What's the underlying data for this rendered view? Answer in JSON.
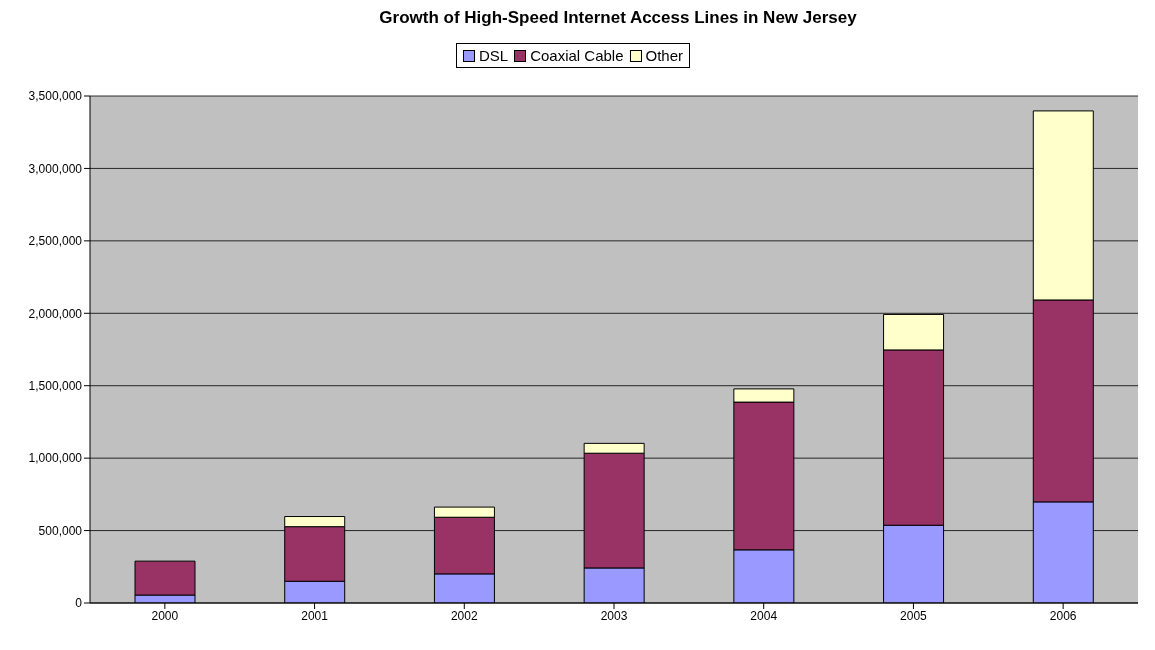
{
  "chart_data": {
    "type": "bar",
    "title": "Growth of High-Speed Internet Access Lines in New Jersey",
    "categories": [
      "2000",
      "2001",
      "2002",
      "2003",
      "2004",
      "2005",
      "2006"
    ],
    "stacked": true,
    "series": [
      {
        "name": "DSL",
        "color": "#9999ff",
        "values": [
          55000,
          150000,
          201000,
          242000,
          367000,
          537000,
          698000
        ]
      },
      {
        "name": "Coaxial Cable",
        "color": "#993366",
        "values": [
          234000,
          377000,
          391000,
          792000,
          1020000,
          1210000,
          1394000
        ]
      },
      {
        "name": "Other",
        "color": "#ffffcc",
        "values": [
          0,
          70000,
          70000,
          68000,
          91000,
          245000,
          1305000
        ]
      }
    ],
    "ylim": [
      0,
      3500000
    ],
    "yticks": [
      0,
      {
        "value": 500000,
        "label": "500,000"
      },
      {
        "value": 1000000,
        "label": "1,000,000"
      },
      {
        "value": 1500000,
        "label": "1,500,000"
      },
      {
        "value": 2000000,
        "label": "2,000,000"
      },
      {
        "value": 2500000,
        "label": "2,500,000"
      },
      {
        "value": 3000000,
        "label": "3,000,000"
      },
      {
        "value": 3500000,
        "label": "3,500,000"
      }
    ],
    "grid": "y",
    "legend": "top"
  }
}
